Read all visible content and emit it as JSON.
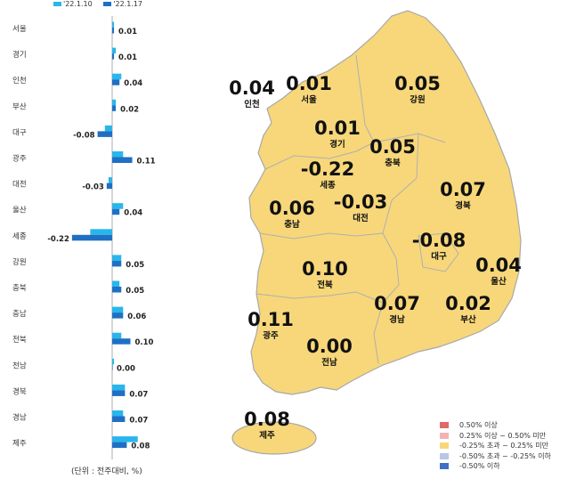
{
  "chart_data": [
    {
      "type": "bar",
      "orientation": "horizontal",
      "categories": [
        "서울",
        "경기",
        "인천",
        "부산",
        "대구",
        "광주",
        "대전",
        "울산",
        "세종",
        "강원",
        "충북",
        "충남",
        "전북",
        "전남",
        "경북",
        "경남",
        "제주"
      ],
      "series": [
        {
          "name": "'22.1.10",
          "values": [
            0.01,
            0.02,
            0.05,
            0.02,
            -0.04,
            0.06,
            -0.02,
            0.06,
            -0.12,
            0.05,
            0.04,
            0.06,
            0.05,
            0.01,
            0.07,
            0.06,
            0.14
          ]
        },
        {
          "name": "'22.1.17",
          "values": [
            0.01,
            0.01,
            0.04,
            0.02,
            -0.08,
            0.11,
            -0.03,
            0.04,
            -0.22,
            0.05,
            0.05,
            0.06,
            0.1,
            0.0,
            0.07,
            0.07,
            0.08
          ]
        }
      ],
      "data_labels": [
        "0.01",
        "0.01",
        "0.04",
        "0.02",
        "-0.08",
        "0.11",
        "-0.03",
        "0.04",
        "-0.22",
        "0.05",
        "0.05",
        "0.06",
        "0.10",
        "0.00",
        "0.07",
        "0.07",
        "0.08"
      ],
      "colors": {
        "series1": "#29b6ea",
        "series2": "#1f6fc4"
      },
      "legend": "top-left",
      "unit_note": "(단위 : 전주대비, %)"
    },
    {
      "type": "map",
      "regions": [
        {
          "name": "인천",
          "value": "0.04"
        },
        {
          "name": "서울",
          "value": "0.01"
        },
        {
          "name": "강원",
          "value": "0.05"
        },
        {
          "name": "경기",
          "value": "0.01"
        },
        {
          "name": "충북",
          "value": "0.05"
        },
        {
          "name": "세종",
          "value": "-0.22"
        },
        {
          "name": "충남",
          "value": "0.06"
        },
        {
          "name": "대전",
          "value": "-0.03"
        },
        {
          "name": "경북",
          "value": "0.07"
        },
        {
          "name": "대구",
          "value": "-0.08"
        },
        {
          "name": "울산",
          "value": "0.04"
        },
        {
          "name": "전북",
          "value": "0.10"
        },
        {
          "name": "경남",
          "value": "0.07"
        },
        {
          "name": "부산",
          "value": "0.02"
        },
        {
          "name": "광주",
          "value": "0.11"
        },
        {
          "name": "전남",
          "value": "0.00"
        },
        {
          "name": "제주",
          "value": "0.08"
        }
      ],
      "fill_color": "#f7d77a",
      "border_color": "#a8a8a8",
      "legend": [
        {
          "label": "0.50% 이상",
          "color": "#e06a6a"
        },
        {
          "label": "0.25% 이상 ~ 0.50% 미만",
          "color": "#f2b3b3"
        },
        {
          "label": "-0.25% 초과 ~ 0.25% 미만",
          "color": "#f7d77a"
        },
        {
          "label": "-0.50% 초과 ~ -0.25% 이하",
          "color": "#b9c6e6"
        },
        {
          "label": "-0.50% 이하",
          "color": "#3f6fc7"
        }
      ],
      "legend_placement": "bottom-right"
    }
  ]
}
